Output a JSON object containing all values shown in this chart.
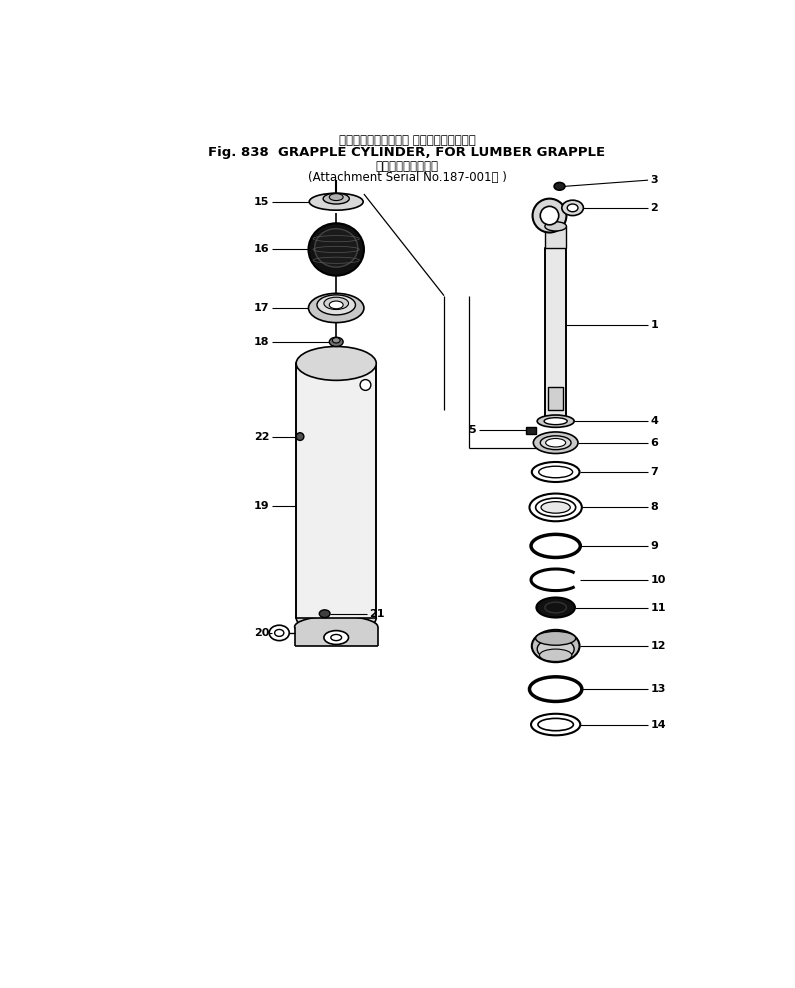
{
  "title_jp": "グラップルシリンダ， ランバグラップル用",
  "title_en": "Fig. 838  GRAPPLE CYLINDER, FOR LUMBER GRAPPLE",
  "subtitle_jp": "アタッチメント号機",
  "subtitle_en": "(Attachment Serial No.187-001～ )",
  "bg_color": "#ffffff",
  "line_color": "#000000"
}
